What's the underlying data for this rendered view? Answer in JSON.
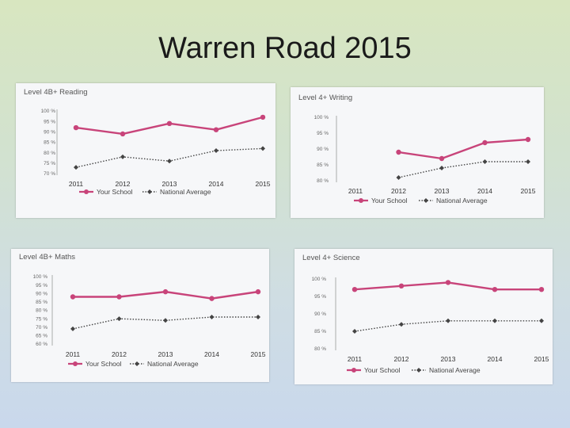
{
  "slide": {
    "title": "Warren Road 2015"
  },
  "chart_data": [
    {
      "type": "line",
      "title": "Level 4B+ Reading",
      "categories": [
        "2011",
        "2012",
        "2013",
        "2014",
        "2015"
      ],
      "y_ticks": [
        "100 %",
        "95 %",
        "90 %",
        "85 %",
        "80 %",
        "75 %",
        "70 %"
      ],
      "ylim": [
        70,
        100
      ],
      "series": [
        {
          "name": "Your School",
          "values": [
            92,
            89,
            94,
            91,
            97
          ],
          "color": "#c8447a",
          "style": "solid"
        },
        {
          "name": "National Average",
          "values": [
            73,
            78,
            76,
            81,
            82
          ],
          "color": "#444444",
          "style": "dotted"
        }
      ],
      "legend_position": "bottom",
      "grid": false
    },
    {
      "type": "line",
      "title": "Level 4+ Writing",
      "categories": [
        "2011",
        "2012",
        "2013",
        "2014",
        "2015"
      ],
      "y_ticks": [
        "100 %",
        "95 %",
        "90 %",
        "85 %",
        "80 %"
      ],
      "ylim": [
        80,
        100
      ],
      "series": [
        {
          "name": "Your School",
          "values": [
            null,
            89,
            87,
            92,
            93
          ],
          "color": "#c8447a",
          "style": "solid"
        },
        {
          "name": "National Average",
          "values": [
            null,
            81,
            84,
            86,
            86
          ],
          "color": "#444444",
          "style": "dotted"
        }
      ],
      "legend_position": "bottom",
      "grid": false
    },
    {
      "type": "line",
      "title": "Level 4B+ Maths",
      "categories": [
        "2011",
        "2012",
        "2013",
        "2014",
        "2015"
      ],
      "y_ticks": [
        "100 %",
        "95 %",
        "90 %",
        "85 %",
        "80 %",
        "75 %",
        "70 %",
        "65 %",
        "60 %"
      ],
      "ylim": [
        60,
        100
      ],
      "series": [
        {
          "name": "Your School",
          "values": [
            88,
            88,
            91,
            87,
            91
          ],
          "color": "#c8447a",
          "style": "solid"
        },
        {
          "name": "National Average",
          "values": [
            69,
            75,
            74,
            76,
            76
          ],
          "color": "#444444",
          "style": "dotted"
        }
      ],
      "legend_position": "bottom",
      "grid": false
    },
    {
      "type": "line",
      "title": "Level 4+ Science",
      "categories": [
        "2011",
        "2012",
        "2013",
        "2014",
        "2015"
      ],
      "y_ticks": [
        "100 %",
        "95 %",
        "90 %",
        "85 %",
        "80 %"
      ],
      "ylim": [
        80,
        100
      ],
      "series": [
        {
          "name": "Your School",
          "values": [
            97,
            98,
            99,
            97,
            97
          ],
          "color": "#c8447a",
          "style": "solid"
        },
        {
          "name": "National Average",
          "values": [
            85,
            87,
            88,
            88,
            88
          ],
          "color": "#444444",
          "style": "dotted"
        }
      ],
      "legend_position": "bottom",
      "grid": false
    }
  ]
}
